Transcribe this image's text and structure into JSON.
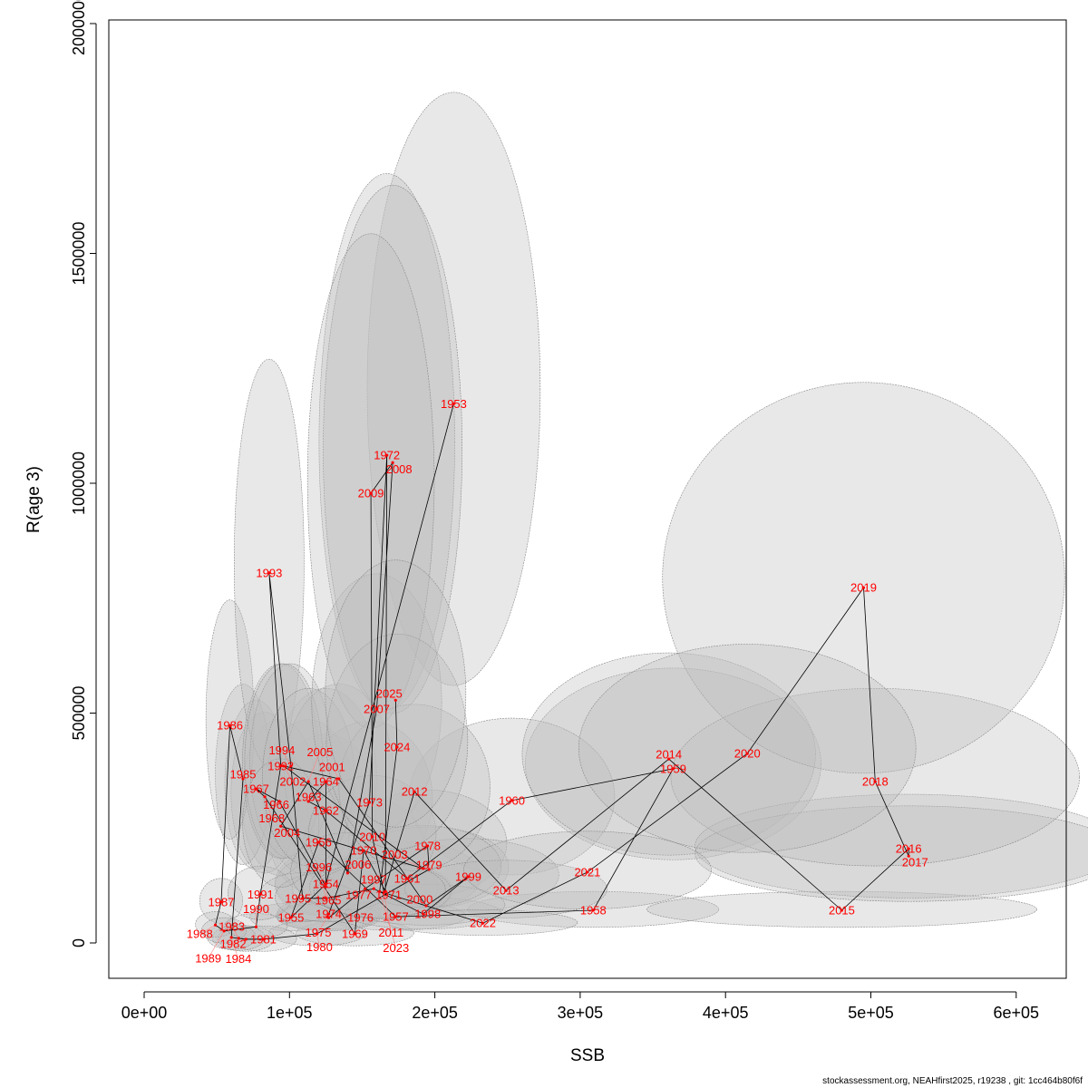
{
  "chart_data": {
    "type": "scatter",
    "xlabel": "SSB",
    "ylabel": "R(age 3)",
    "xlim": [
      -25000,
      635000
    ],
    "ylim": [
      -75000,
      2010000
    ],
    "xticks": [
      0,
      100000,
      200000,
      300000,
      400000,
      500000,
      600000
    ],
    "xtick_labels": [
      "0e+00",
      "1e+05",
      "2e+05",
      "3e+05",
      "4e+05",
      "5e+05",
      "6e+05"
    ],
    "yticks": [
      0,
      500000,
      1000000,
      1500000,
      2000000
    ],
    "ytick_labels": [
      "0",
      "500000",
      "1000000",
      "1500000",
      "2000000"
    ],
    "point_color": "#ff0000",
    "ellipse_color": "#bebebe",
    "line_color": "#000000",
    "points": [
      [
        1953,
        213000,
        1173000
      ],
      [
        1954,
        125000,
        128000
      ],
      [
        1955,
        101000,
        55000
      ],
      [
        1956,
        120000,
        219000
      ],
      [
        1957,
        173000,
        57000
      ],
      [
        1958,
        309000,
        71000
      ],
      [
        1959,
        364000,
        379000
      ],
      [
        1960,
        253000,
        310000
      ],
      [
        1961,
        181000,
        140000
      ],
      [
        1962,
        125000,
        288000
      ],
      [
        1963,
        113000,
        308000
      ],
      [
        1964,
        125000,
        351000
      ],
      [
        1965,
        125000,
        122000
      ],
      [
        1966,
        93000,
        308000
      ],
      [
        1967,
        77000,
        335000
      ],
      [
        1968,
        83000,
        318000
      ],
      [
        1969,
        145000,
        20000
      ],
      [
        1970,
        151000,
        201000
      ],
      [
        1971,
        166000,
        112000
      ],
      [
        1972,
        167000,
        1061000
      ],
      [
        1973,
        155000,
        306000
      ],
      [
        1974,
        127000,
        63000
      ],
      [
        1975,
        126000,
        57000
      ],
      [
        1976,
        127000,
        55000
      ],
      [
        1977,
        152000,
        118000
      ],
      [
        1978,
        195000,
        211000
      ],
      [
        1979,
        196000,
        160000
      ],
      [
        1980,
        119000,
        20000
      ],
      [
        1981,
        82000,
        8000
      ],
      [
        1982,
        70000,
        8000
      ],
      [
        1983,
        65000,
        10000
      ],
      [
        1984,
        60000,
        12000
      ],
      [
        1985,
        68000,
        357000
      ],
      [
        1986,
        59000,
        473000
      ],
      [
        1987,
        53000,
        89000
      ],
      [
        1988,
        49000,
        39000
      ],
      [
        1989,
        55000,
        26000
      ],
      [
        1990,
        77000,
        35000
      ],
      [
        1991,
        80000,
        106000
      ],
      [
        1992,
        94000,
        385000
      ],
      [
        1993,
        86000,
        805000
      ],
      [
        1994,
        101000,
        385000
      ],
      [
        1995,
        109000,
        97000
      ],
      [
        1996,
        125000,
        97000
      ],
      [
        1997,
        158000,
        118000
      ],
      [
        1998,
        192000,
        63000
      ],
      [
        1999,
        223000,
        144000
      ],
      [
        2000,
        194000,
        81000
      ],
      [
        2001,
        134000,
        357000
      ],
      [
        2002,
        96000,
        385000
      ],
      [
        2003,
        192000,
        162000
      ],
      [
        2004,
        94000,
        254000
      ],
      [
        2005,
        113000,
        351000
      ],
      [
        2006,
        140000,
        152000
      ],
      [
        2007,
        160000,
        509000
      ],
      [
        2008,
        171000,
        1045000
      ],
      [
        2009,
        156000,
        978000
      ],
      [
        2010,
        157000,
        231000
      ],
      [
        2011,
        165000,
        110000
      ],
      [
        2012,
        186000,
        329000
      ],
      [
        2013,
        249000,
        114000
      ],
      [
        2014,
        361000,
        400000
      ],
      [
        2015,
        480000,
        71000
      ],
      [
        2016,
        526000,
        205000
      ],
      [
        2017,
        526000,
        189000
      ],
      [
        2018,
        503000,
        351000
      ],
      [
        2019,
        495000,
        773000
      ],
      [
        2020,
        415000,
        412000
      ],
      [
        2021,
        305000,
        154000
      ],
      [
        2022,
        233000,
        43000
      ],
      [
        2023,
        162000,
        112000
      ],
      [
        2024,
        174000,
        426000
      ],
      [
        2025,
        173000,
        528000
      ]
    ]
  },
  "footer": "stockassessment.org, NEAHfirst2025, r19238 , git: 1cc464b80f6f"
}
